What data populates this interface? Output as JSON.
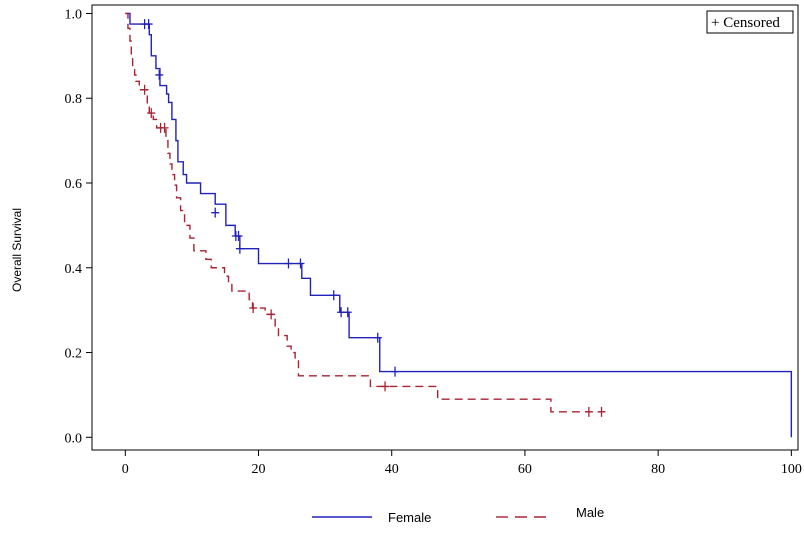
{
  "chart_data": {
    "type": "line",
    "ylabel": "Overall Survival",
    "xlabel": "",
    "xlim": [
      -5,
      101
    ],
    "ylim": [
      -0.03,
      1.02
    ],
    "x_ticks": [
      0,
      20,
      40,
      60,
      80,
      100
    ],
    "y_ticks": [
      0.0,
      0.2,
      0.4,
      0.6,
      0.8,
      1.0
    ],
    "x_tick_labels": [
      "0",
      "20",
      "40",
      "60",
      "80",
      "100"
    ],
    "y_tick_labels": [
      "0.0",
      "0.2",
      "0.4",
      "0.6",
      "0.8",
      "1.0"
    ],
    "censor_legend": "+ Censored",
    "legend_position": "bottom",
    "series": [
      {
        "name": "Female",
        "color": "#2222bb",
        "dash": "solid",
        "steps": [
          [
            0,
            1.0
          ],
          [
            0.7,
            0.975
          ],
          [
            3.6,
            0.95
          ],
          [
            3.9,
            0.9
          ],
          [
            4.6,
            0.87
          ],
          [
            5.2,
            0.83
          ],
          [
            6.2,
            0.81
          ],
          [
            6.5,
            0.79
          ],
          [
            7.0,
            0.75
          ],
          [
            7.6,
            0.7
          ],
          [
            7.9,
            0.65
          ],
          [
            8.7,
            0.62
          ],
          [
            9.2,
            0.6
          ],
          [
            11.3,
            0.575
          ],
          [
            13.5,
            0.55
          ],
          [
            15.1,
            0.5
          ],
          [
            16.5,
            0.475
          ],
          [
            17.2,
            0.445
          ],
          [
            20.0,
            0.41
          ],
          [
            26.5,
            0.375
          ],
          [
            27.8,
            0.335
          ],
          [
            32.2,
            0.295
          ],
          [
            33.6,
            0.235
          ],
          [
            38.2,
            0.155
          ],
          [
            100.0,
            0.0
          ]
        ],
        "end_x": 100,
        "censored": [
          [
            2.9,
            0.975
          ],
          [
            3.5,
            0.975
          ],
          [
            5.1,
            0.855
          ],
          [
            13.5,
            0.53
          ],
          [
            16.6,
            0.475
          ],
          [
            17.0,
            0.475
          ],
          [
            17.2,
            0.445
          ],
          [
            24.5,
            0.41
          ],
          [
            26.3,
            0.41
          ],
          [
            31.3,
            0.335
          ],
          [
            32.4,
            0.295
          ],
          [
            33.4,
            0.295
          ],
          [
            37.9,
            0.235
          ],
          [
            40.5,
            0.155
          ]
        ]
      },
      {
        "name": "Male",
        "color": "#aa2233",
        "dash": "8,5",
        "steps": [
          [
            0,
            1.0
          ],
          [
            0.4,
            0.965
          ],
          [
            0.7,
            0.935
          ],
          [
            0.9,
            0.905
          ],
          [
            1.1,
            0.87
          ],
          [
            1.4,
            0.855
          ],
          [
            1.6,
            0.84
          ],
          [
            2.1,
            0.82
          ],
          [
            3.3,
            0.785
          ],
          [
            3.6,
            0.765
          ],
          [
            4.2,
            0.75
          ],
          [
            4.7,
            0.73
          ],
          [
            6.1,
            0.7
          ],
          [
            6.4,
            0.67
          ],
          [
            6.7,
            0.645
          ],
          [
            7.0,
            0.62
          ],
          [
            7.4,
            0.595
          ],
          [
            7.7,
            0.565
          ],
          [
            8.3,
            0.535
          ],
          [
            8.9,
            0.5
          ],
          [
            9.7,
            0.47
          ],
          [
            10.3,
            0.44
          ],
          [
            12.1,
            0.42
          ],
          [
            12.9,
            0.4
          ],
          [
            14.9,
            0.38
          ],
          [
            15.5,
            0.365
          ],
          [
            16.0,
            0.345
          ],
          [
            18.6,
            0.325
          ],
          [
            19.1,
            0.305
          ],
          [
            21.0,
            0.29
          ],
          [
            22.5,
            0.26
          ],
          [
            23.0,
            0.24
          ],
          [
            24.3,
            0.215
          ],
          [
            24.9,
            0.2
          ],
          [
            25.5,
            0.18
          ],
          [
            26.0,
            0.145
          ],
          [
            36.8,
            0.12
          ],
          [
            42.9,
            0.12
          ],
          [
            46.9,
            0.09
          ],
          [
            63.9,
            0.06
          ],
          [
            72.0,
            0.06
          ]
        ],
        "end_x": 72,
        "censored": [
          [
            2.9,
            0.82
          ],
          [
            3.9,
            0.765
          ],
          [
            5.3,
            0.73
          ],
          [
            5.9,
            0.73
          ],
          [
            19.2,
            0.305
          ],
          [
            21.9,
            0.29
          ],
          [
            39.0,
            0.12
          ],
          [
            69.6,
            0.06
          ],
          [
            71.5,
            0.06
          ]
        ]
      }
    ]
  }
}
